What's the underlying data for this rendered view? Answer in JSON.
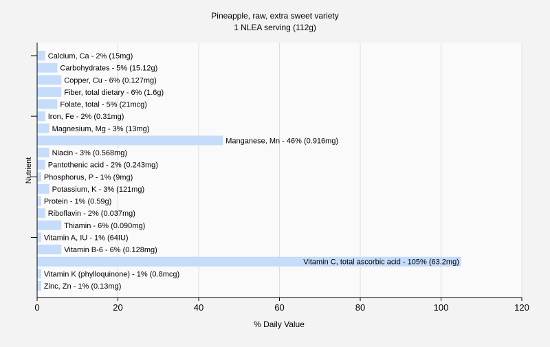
{
  "chart_data": {
    "type": "bar",
    "orientation": "horizontal",
    "title": "Pineapple, raw, extra sweet variety",
    "subtitle": "1 NLEA serving (112g)",
    "xlabel": "% Daily Value",
    "ylabel": "Nutrient",
    "xlim": [
      0,
      120
    ],
    "xticks": [
      "0",
      "20",
      "40",
      "60",
      "80",
      "100",
      "120"
    ],
    "grid": true,
    "bar_color": "#c5dcfa",
    "categories": [
      "Calcium, Ca",
      "Carbohydrates",
      "Copper, Cu",
      "Fiber, total dietary",
      "Folate, total",
      "Iron, Fe",
      "Magnesium, Mg",
      "Manganese, Mn",
      "Niacin",
      "Pantothenic acid",
      "Phosphorus, P",
      "Potassium, K",
      "Protein",
      "Riboflavin",
      "Thiamin",
      "Vitamin A, IU",
      "Vitamin B-6",
      "Vitamin C, total ascorbic acid",
      "Vitamin K (phylloquinone)",
      "Zinc, Zn"
    ],
    "values": [
      2,
      5,
      6,
      6,
      5,
      2,
      3,
      46,
      3,
      2,
      1,
      3,
      1,
      2,
      6,
      1,
      6,
      105,
      1,
      1
    ],
    "labels": [
      "Calcium, Ca - 2% (15mg)",
      "Carbohydrates - 5% (15.12g)",
      "Copper, Cu - 6% (0.127mg)",
      "Fiber, total dietary - 6% (1.6g)",
      "Folate, total - 5% (21mcg)",
      "Iron, Fe - 2% (0.31mg)",
      "Magnesium, Mg - 3% (13mg)",
      "Manganese, Mn - 46% (0.916mg)",
      "Niacin - 3% (0.568mg)",
      "Pantothenic acid - 2% (0.243mg)",
      "Phosphorus, P - 1% (9mg)",
      "Potassium, K - 3% (121mg)",
      "Protein - 1% (0.59g)",
      "Riboflavin - 2% (0.037mg)",
      "Thiamin - 6% (0.090mg)",
      "Vitamin A, IU - 1% (64IU)",
      "Vitamin B-6 - 6% (0.128mg)",
      "Vitamin C, total ascorbic acid - 105% (63.2mg)",
      "Vitamin K (phylloquinone) - 1% (0.8mcg)",
      "Zinc, Zn - 1% (0.13mg)"
    ]
  }
}
